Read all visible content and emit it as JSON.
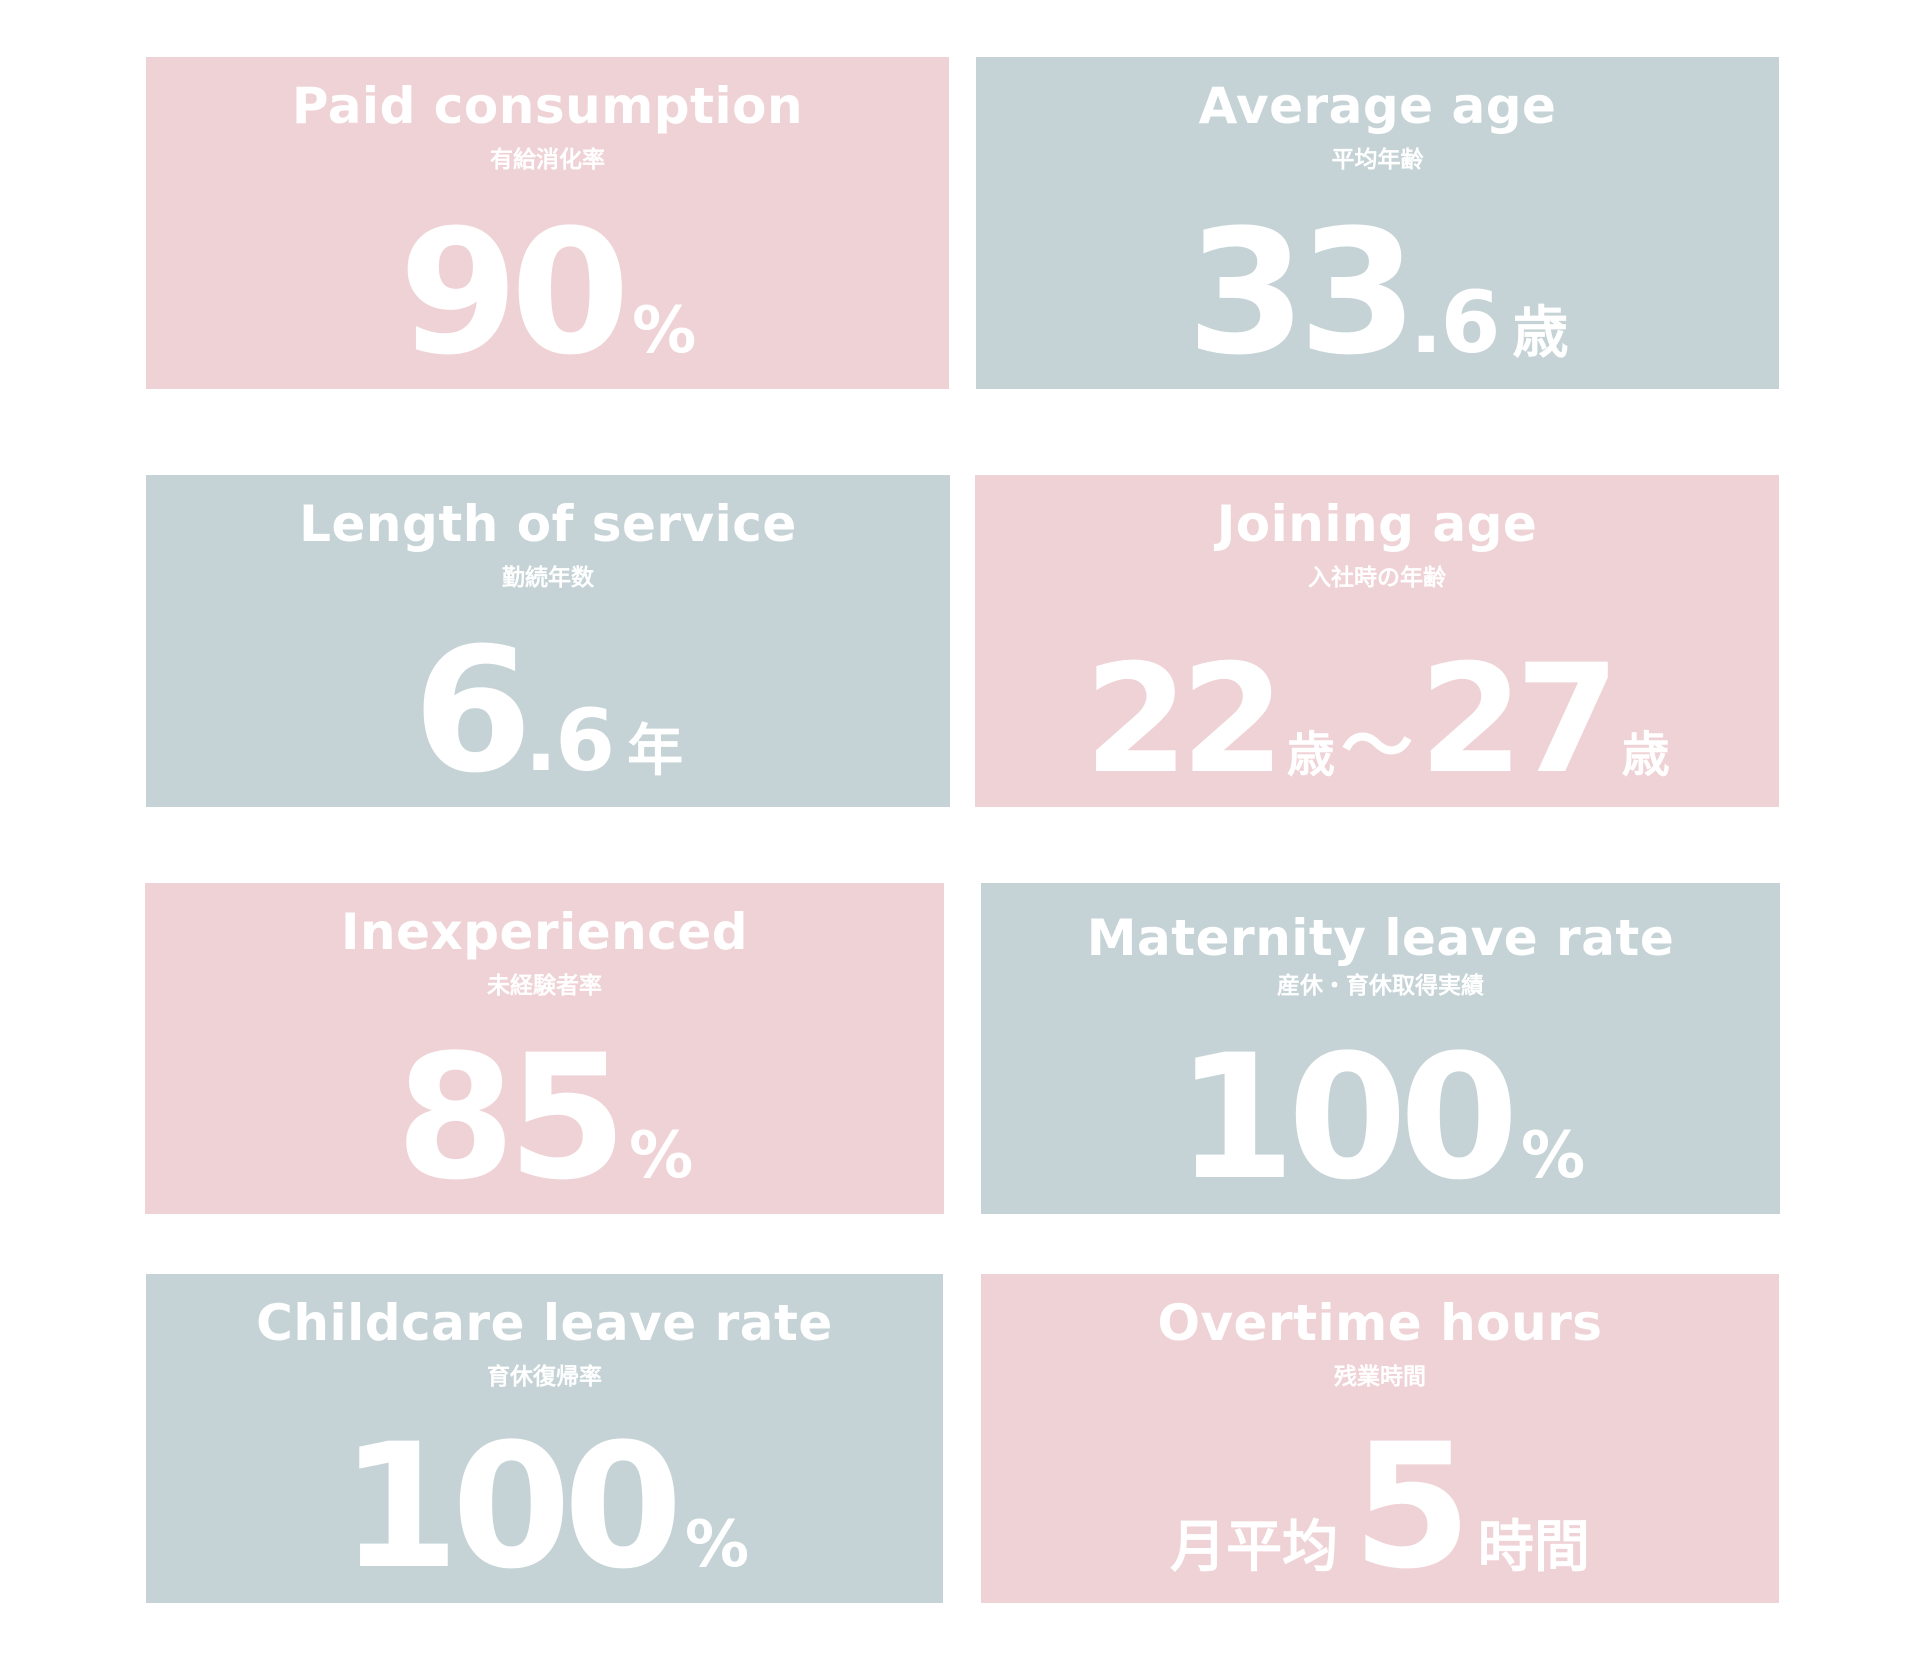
{
  "colors": {
    "pink": "#efd2d5",
    "blue": "#c5d3d6",
    "text": "#ffffff"
  },
  "cards": [
    {
      "title": "Paid consumption",
      "subtitle": "有給消化率",
      "value": "90",
      "unit": "%",
      "color": "pink"
    },
    {
      "title": "Average age",
      "subtitle": "平均年齢",
      "value_int": "33",
      "value_dec": ".6",
      "unit": "歳",
      "color": "blue"
    },
    {
      "title": "Length of service",
      "subtitle": "勤続年数",
      "value_int": "6",
      "value_dec": ".6",
      "unit": "年",
      "color": "blue"
    },
    {
      "title": "Joining age",
      "subtitle": "入社時の年齢",
      "value_from": "22",
      "unit_from": "歳",
      "separator": "～",
      "value_to": "27",
      "unit_to": "歳",
      "color": "pink"
    },
    {
      "title": "Inexperienced",
      "subtitle": "未経験者率",
      "value": "85",
      "unit": "%",
      "color": "pink"
    },
    {
      "title": "Maternity leave rate",
      "subtitle": "産休・育休取得実績",
      "value": "100",
      "unit": "%",
      "color": "blue"
    },
    {
      "title": "Childcare leave rate",
      "subtitle": "育休復帰率",
      "value": "100",
      "unit": "%",
      "color": "blue"
    },
    {
      "title": "Overtime hours",
      "subtitle": "残業時間",
      "prefix": "月平均",
      "value": "5",
      "unit": "時間",
      "color": "pink"
    }
  ]
}
